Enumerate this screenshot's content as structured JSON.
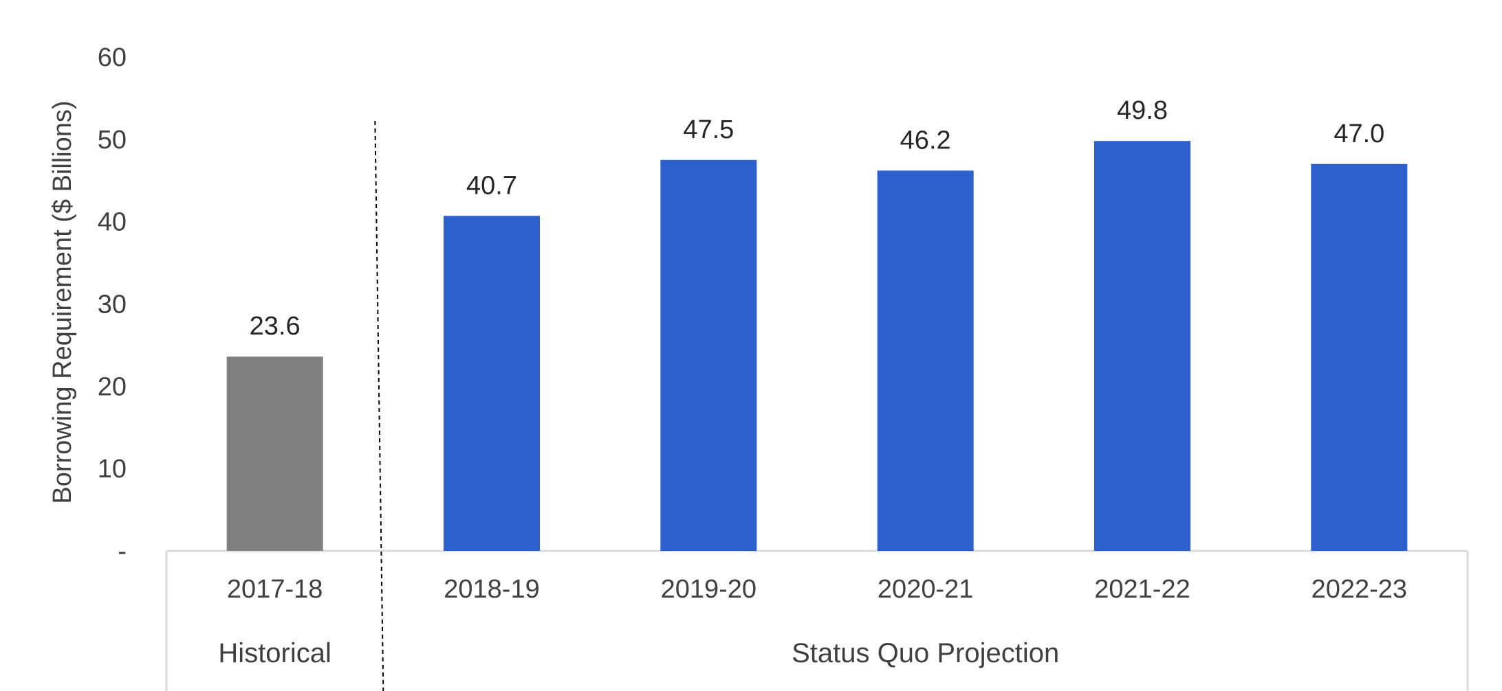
{
  "chart_data": {
    "type": "bar",
    "categories": [
      "2017-18",
      "2018-19",
      "2019-20",
      "2020-21",
      "2021-22",
      "2022-23"
    ],
    "values": [
      23.6,
      40.7,
      47.5,
      46.2,
      49.8,
      47.0
    ],
    "value_labels": [
      "23.6",
      "40.7",
      "47.5",
      "46.2",
      "49.8",
      "47.0"
    ],
    "bar_groups": [
      "Historical",
      "Status Quo Projection",
      "Status Quo Projection",
      "Status Quo Projection",
      "Status Quo Projection",
      "Status Quo Projection"
    ],
    "groups": [
      {
        "label": "Historical",
        "color": "#808080"
      },
      {
        "label": "Status Quo Projection",
        "color": "#2d5fcd"
      }
    ],
    "title": "",
    "xlabel": "",
    "ylabel": "Borrowing Requirement ($ Billions)",
    "ylim": [
      0,
      60
    ],
    "yticks": [
      0,
      10,
      20,
      30,
      40,
      50,
      60
    ],
    "ytick_labels": [
      "-",
      "10",
      "20",
      "30",
      "40",
      "50",
      "60"
    ],
    "grid": false,
    "legend": "none",
    "separator": "dashed vertical line between Historical and Status Quo Projection"
  }
}
